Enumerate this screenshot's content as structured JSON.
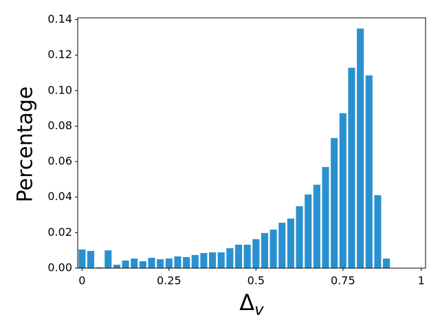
{
  "chart_data": {
    "type": "bar",
    "x_label": {
      "text": "Δ",
      "subscript": "v"
    },
    "y_label": "Percentage",
    "categories": [
      "0",
      null,
      null,
      null,
      null,
      null,
      null,
      null,
      null,
      null,
      "0.25",
      null,
      null,
      null,
      null,
      null,
      null,
      null,
      null,
      null,
      "0.5",
      null,
      null,
      null,
      null,
      null,
      null,
      null,
      null,
      null,
      "0.75",
      null,
      null,
      null,
      null,
      null,
      null,
      null,
      null,
      "1"
    ],
    "values": [
      0.0105,
      0.0097,
      0.0005,
      0.01,
      0.0019,
      0.0043,
      0.0054,
      0.0039,
      0.0058,
      0.005,
      0.0054,
      0.0066,
      0.0062,
      0.0074,
      0.0085,
      0.0089,
      0.0089,
      0.0112,
      0.0132,
      0.0132,
      0.0163,
      0.0198,
      0.0217,
      0.0256,
      0.0279,
      0.0349,
      0.0415,
      0.047,
      0.057,
      0.0733,
      0.0873,
      0.1129,
      0.135,
      0.1086,
      0.0411,
      0.0054,
      0,
      0,
      0,
      0
    ],
    "color": "#2a91d0",
    "ylim": [
      0,
      0.141
    ],
    "yticks": [
      {
        "value": 0,
        "label": "0.00"
      },
      {
        "value": 0.02,
        "label": "0.02"
      },
      {
        "value": 0.04,
        "label": "0.04"
      },
      {
        "value": 0.06,
        "label": "0.06"
      },
      {
        "value": 0.08,
        "label": "0.08"
      },
      {
        "value": 0.1,
        "label": "0.10"
      },
      {
        "value": 0.12,
        "label": "0.12"
      },
      {
        "value": 0.14,
        "label": "0.14"
      }
    ],
    "grid": false
  }
}
